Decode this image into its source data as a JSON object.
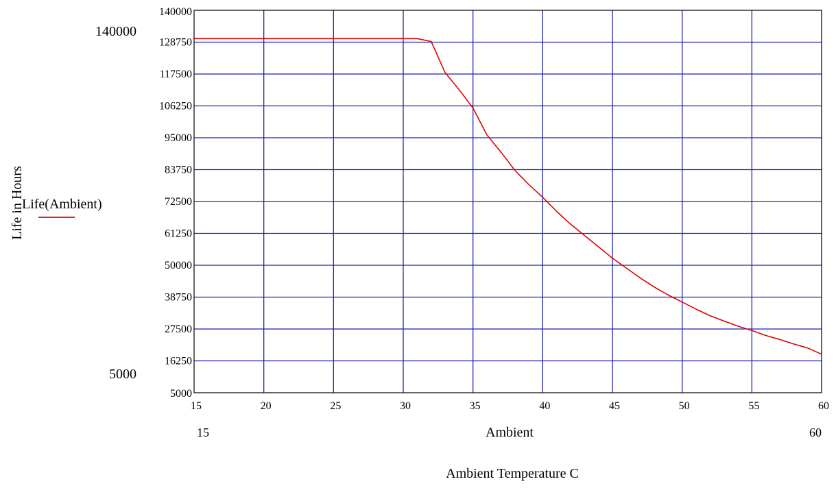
{
  "chart_data": {
    "type": "line",
    "title": "",
    "xlabel": "Ambient Temperature C",
    "xvar_label": "Ambient",
    "ylabel": "Life in Hours",
    "xlim": [
      15,
      60
    ],
    "ylim": [
      5000,
      140000
    ],
    "x_range_labels": {
      "min": "15",
      "max": "60"
    },
    "y_range_labels": {
      "min": "5000",
      "max": "140000"
    },
    "x_ticks": [
      "15",
      "20",
      "25",
      "30",
      "35",
      "40",
      "45",
      "50",
      "55",
      "60"
    ],
    "y_ticks": [
      "5000",
      "16250",
      "27500",
      "38750",
      "50000",
      "61250",
      "72500",
      "83750",
      "95000",
      "106250",
      "117500",
      "128750",
      "140000"
    ],
    "grid": true,
    "grid_color": "#1f1fb4",
    "legend": {
      "label": "Life(Ambient)",
      "position": "left"
    },
    "series": [
      {
        "name": "Life(Ambient)",
        "color": "#e00000",
        "x": [
          15,
          20,
          25,
          30,
          31,
          32,
          33,
          34,
          35,
          36,
          37,
          38,
          39,
          40,
          41,
          42,
          43,
          44,
          45,
          46,
          47,
          48,
          49,
          50,
          51,
          52,
          53,
          54,
          55,
          56,
          57,
          58,
          59,
          60
        ],
        "y": [
          130000,
          130000,
          130000,
          130000,
          130000,
          129000,
          118000,
          112000,
          105500,
          96000,
          90000,
          83500,
          78500,
          74000,
          69000,
          64500,
          60500,
          56500,
          52500,
          49000,
          45500,
          42300,
          39500,
          37000,
          34500,
          32200,
          30300,
          28500,
          27000,
          25200,
          23800,
          22200,
          20800,
          18600
        ]
      }
    ]
  }
}
